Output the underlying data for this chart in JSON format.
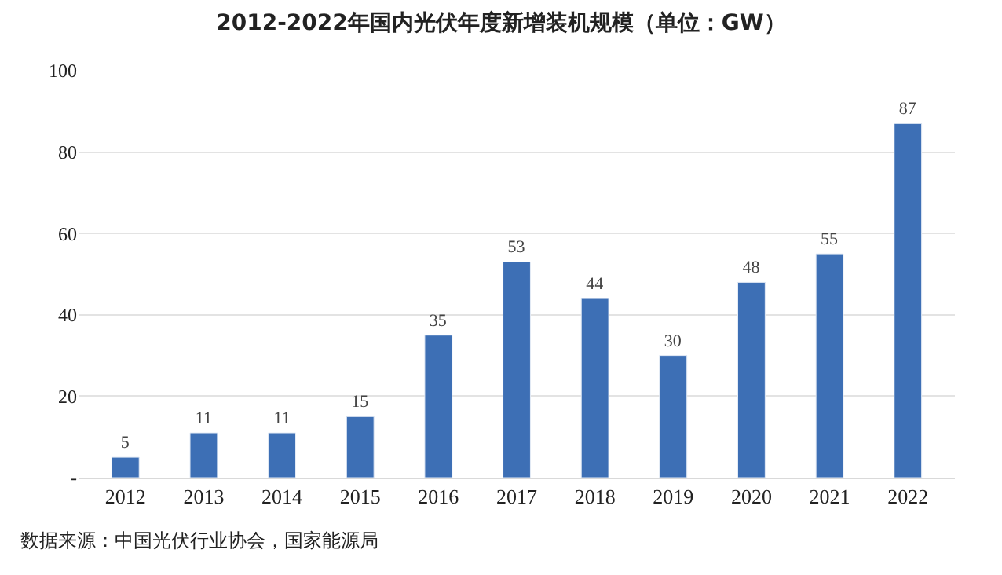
{
  "chart_data": {
    "type": "bar",
    "title": "2012-2022年国内光伏年度新增装机规模（单位：GW）",
    "categories": [
      "2012",
      "2013",
      "2014",
      "2015",
      "2016",
      "2017",
      "2018",
      "2019",
      "2020",
      "2021",
      "2022"
    ],
    "values": [
      5,
      11,
      11,
      15,
      35,
      53,
      44,
      30,
      48,
      55,
      87
    ],
    "color": "#3d6fb5",
    "data_labels": true,
    "ylim": [
      0,
      100
    ],
    "yticks": [
      {
        "value": 0,
        "label": "-"
      },
      20,
      40,
      60,
      80,
      100
    ],
    "grid": "y",
    "annotations": [
      "数据来源：中国光伏行业协会，国家能源局"
    ]
  }
}
